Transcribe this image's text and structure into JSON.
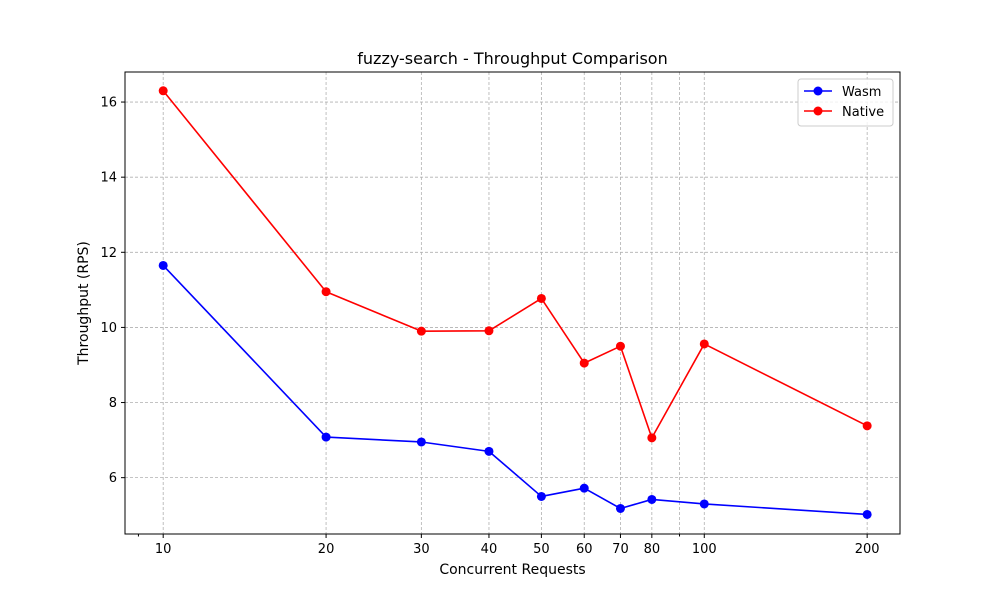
{
  "chart_data": {
    "type": "line",
    "title": "fuzzy-search - Throughput Comparison",
    "xlabel": "Concurrent Requests",
    "ylabel": "Throughput (RPS)",
    "xscale": "log",
    "x": [
      10,
      20,
      30,
      40,
      50,
      60,
      70,
      80,
      100,
      200
    ],
    "x_tick_labels": [
      "10",
      "20",
      "30",
      "40",
      "50",
      "60",
      "70",
      "80",
      "100",
      "200"
    ],
    "xlim": [
      8.5,
      230
    ],
    "ylim": [
      4.5,
      16.8
    ],
    "y_ticks": [
      6,
      8,
      10,
      12,
      14,
      16
    ],
    "y_tick_labels": [
      "6",
      "8",
      "10",
      "12",
      "14",
      "16"
    ],
    "grid": true,
    "legend_position": "top-right",
    "series": [
      {
        "name": "Wasm",
        "color": "#0000ff",
        "values": [
          11.65,
          7.08,
          6.95,
          6.7,
          5.5,
          5.72,
          5.18,
          5.42,
          5.3,
          5.02
        ]
      },
      {
        "name": "Native",
        "color": "#ff0000",
        "values": [
          16.3,
          10.95,
          9.9,
          9.91,
          10.77,
          9.05,
          9.5,
          7.06,
          9.56,
          7.38
        ]
      }
    ]
  }
}
